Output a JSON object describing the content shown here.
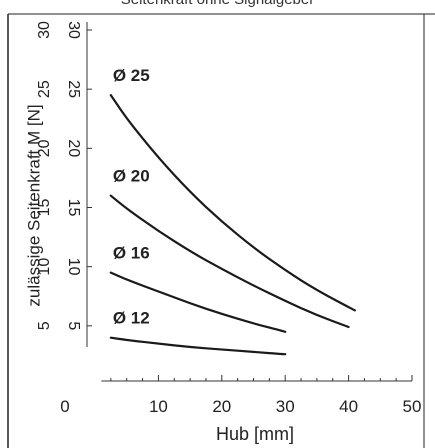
{
  "header": {
    "title_fragment": "Seitenkraft ohne Signalgeber"
  },
  "chart_data": {
    "type": "line",
    "title": "",
    "xlabel": "Hub [mm]",
    "ylabel": "zulässige Seitenkraft M [N]",
    "xlim": [
      0,
      50
    ],
    "ylim": [
      0,
      30
    ],
    "x_ticks": [
      0,
      10,
      20,
      30,
      40,
      50
    ],
    "y_ticks": [
      5,
      10,
      15,
      20,
      25,
      30
    ],
    "grid": false,
    "series": [
      {
        "name": "Ø 25",
        "x": [
          2.5,
          5,
          10,
          15,
          20,
          25,
          30,
          35,
          41
        ],
        "y": [
          24.5,
          22.5,
          19.2,
          16.3,
          13.8,
          11.6,
          9.7,
          8.0,
          6.3
        ]
      },
      {
        "name": "Ø 20",
        "x": [
          2.5,
          5,
          10,
          15,
          20,
          25,
          30,
          35,
          40
        ],
        "y": [
          16.0,
          14.9,
          13.0,
          11.3,
          9.8,
          8.4,
          7.1,
          5.9,
          4.9
        ]
      },
      {
        "name": "Ø 16",
        "x": [
          2.5,
          5,
          10,
          15,
          20,
          25,
          30
        ],
        "y": [
          9.5,
          8.9,
          7.9,
          6.9,
          6.0,
          5.2,
          4.5
        ]
      },
      {
        "name": "Ø 12",
        "x": [
          2.5,
          5,
          10,
          15,
          20,
          25,
          30
        ],
        "y": [
          4.0,
          3.8,
          3.5,
          3.2,
          3.0,
          2.8,
          2.6
        ]
      }
    ]
  }
}
